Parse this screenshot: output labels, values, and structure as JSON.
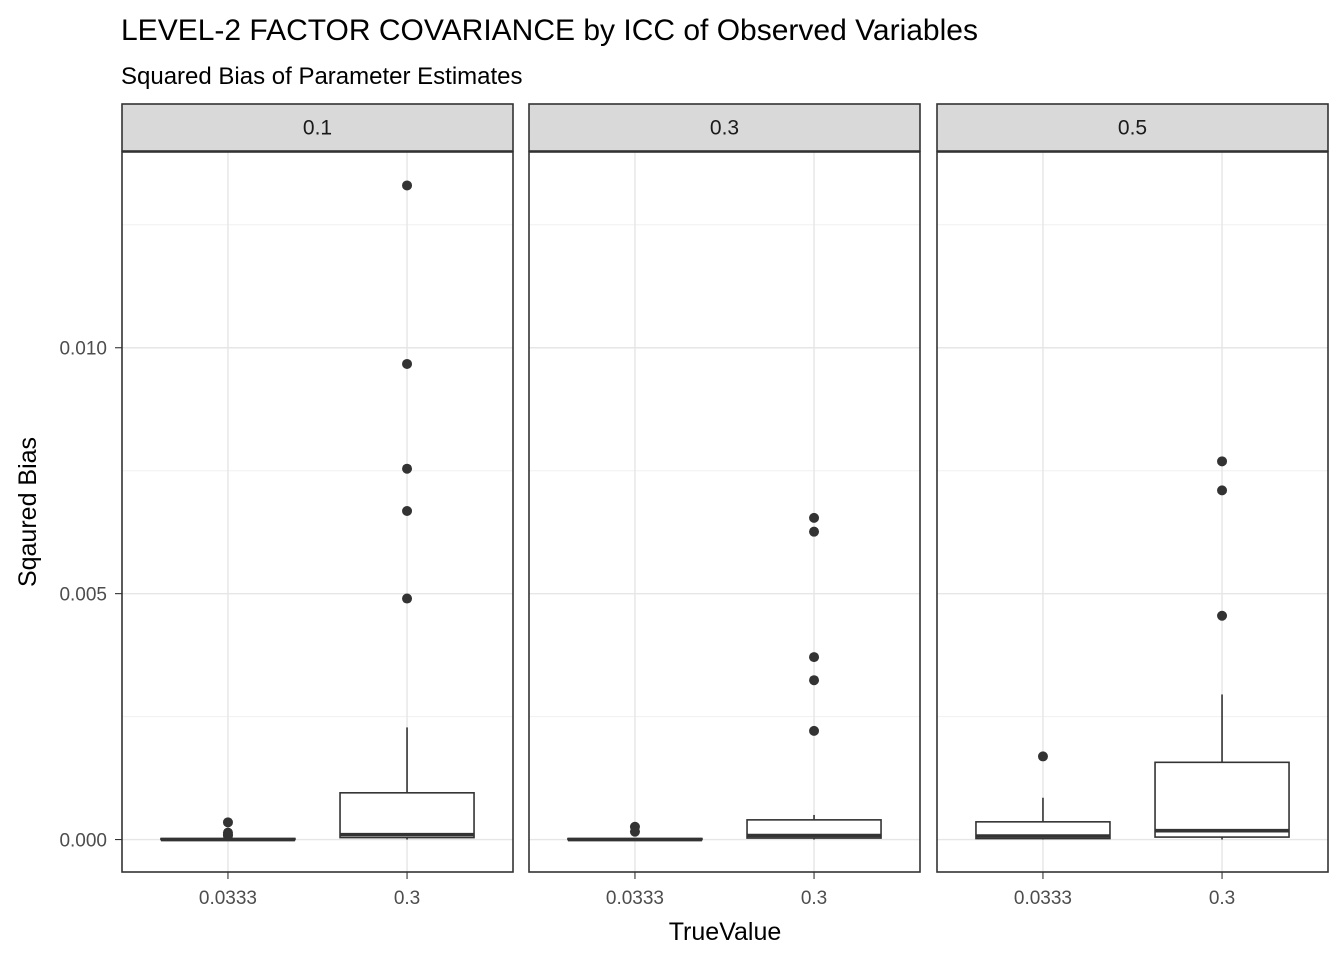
{
  "chart_data": {
    "type": "box",
    "title": "LEVEL-2 FACTOR COVARIANCE by ICC of Observed Variables",
    "subtitle": "Squared Bias of Parameter Estimates",
    "xlabel": "TrueValue",
    "ylabel": "Sqaured Bias",
    "categories": [
      "0.0333",
      "0.3"
    ],
    "y_ticks": [
      0.0,
      0.005,
      0.01
    ],
    "y_tick_labels": [
      "0.000",
      "0.005",
      "0.010"
    ],
    "ylim": [
      -0.00066,
      0.01398
    ],
    "grid": true,
    "panels": [
      {
        "label": "0.1",
        "boxes": [
          {
            "category": "0.0333",
            "min": 0.0,
            "q1": 0.0,
            "median": 0.0,
            "q3": 2e-05,
            "max": 2e-05,
            "outliers": [
              0.00035,
              0.00014,
              0.0001,
              8e-05
            ]
          },
          {
            "category": "0.3",
            "min": 0.0,
            "q1": 4e-05,
            "median": 0.0001,
            "q3": 0.00095,
            "max": 0.00228,
            "outliers": [
              0.0133,
              0.00967,
              0.00754,
              0.00668,
              0.0049
            ]
          }
        ]
      },
      {
        "label": "0.3",
        "boxes": [
          {
            "category": "0.0333",
            "min": 0.0,
            "q1": 0.0,
            "median": 0.0,
            "q3": 2e-05,
            "max": 2e-05,
            "outliers": [
              0.00026,
              0.00016
            ]
          },
          {
            "category": "0.3",
            "min": 0.0,
            "q1": 3e-05,
            "median": 8e-05,
            "q3": 0.0004,
            "max": 0.0005,
            "outliers": [
              0.00654,
              0.00626,
              0.00371,
              0.00324,
              0.00221
            ]
          }
        ]
      },
      {
        "label": "0.5",
        "boxes": [
          {
            "category": "0.0333",
            "min": 0.0,
            "q1": 2e-05,
            "median": 7e-05,
            "q3": 0.00036,
            "max": 0.00085,
            "outliers": [
              0.00169
            ]
          },
          {
            "category": "0.3",
            "min": 0.0,
            "q1": 5e-05,
            "median": 0.00018,
            "q3": 0.00157,
            "max": 0.00295,
            "outliers": [
              0.00769,
              0.0071,
              0.00455
            ]
          }
        ]
      }
    ]
  }
}
